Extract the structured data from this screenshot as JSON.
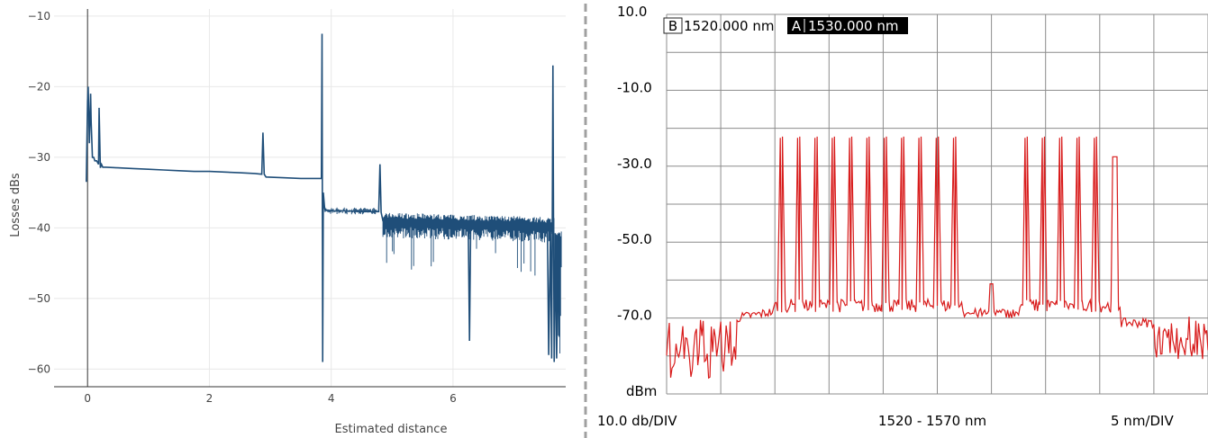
{
  "chart_data": [
    {
      "type": "line",
      "title": "",
      "xlabel": "Estimated distance",
      "ylabel": "Losses dBs",
      "xlim": [
        -0.55,
        7.85
      ],
      "ylim": [
        -62.5,
        -9
      ],
      "x_ticks": [
        0,
        2,
        4,
        6
      ],
      "x_tick_labels": [
        "0",
        "2",
        "4",
        "6"
      ],
      "y_ticks": [
        -10,
        -20,
        -30,
        -40,
        -50,
        -60
      ],
      "y_tick_labels": [
        "−10",
        "−20",
        "−30",
        "−40",
        "−50",
        "−60"
      ],
      "grid": true,
      "line_color": "#1f4e79",
      "series": [
        {
          "x": [
            -0.02,
            0.0,
            0.01,
            0.03,
            0.05,
            0.06,
            0.08,
            0.1,
            0.12,
            0.15,
            0.18,
            0.19,
            0.21,
            0.23,
            0.25,
            0.3,
            0.5,
            0.75,
            1.0,
            1.25,
            1.5,
            1.75,
            2.0,
            2.25,
            2.5,
            2.75,
            2.86,
            2.88,
            2.9,
            2.93,
            3.2,
            3.5,
            3.84,
            3.85,
            3.86,
            3.87,
            3.89,
            3.9,
            3.95,
            4.0,
            4.25,
            4.5,
            4.78,
            4.8,
            4.82,
            4.85,
            5.0,
            5.25,
            5.5,
            5.75,
            6.0,
            6.25,
            6.27,
            6.29,
            6.5,
            6.75,
            7.0,
            7.25,
            7.4,
            7.5,
            7.55,
            7.57,
            7.6,
            7.62,
            7.63,
            7.64,
            7.65,
            7.66,
            7.68,
            7.7,
            7.73,
            7.78
          ],
          "y": [
            -33.5,
            -22.0,
            -20.0,
            -28.0,
            -21.0,
            -25.0,
            -30.0,
            -30.0,
            -30.5,
            -30.5,
            -31.0,
            -23.0,
            -31.5,
            -31.0,
            -31.4,
            -31.4,
            -31.5,
            -31.6,
            -31.7,
            -31.8,
            -31.9,
            -32.0,
            -32.0,
            -32.1,
            -32.2,
            -32.3,
            -32.4,
            -26.5,
            -32.4,
            -32.8,
            -32.9,
            -33.0,
            -33.0,
            -12.5,
            -59.0,
            -35.0,
            -37.0,
            -37.5,
            -37.5,
            -37.6,
            -37.6,
            -37.7,
            -37.7,
            -31.0,
            -37.8,
            -39.0,
            -39.2,
            -39.3,
            -39.4,
            -39.5,
            -39.5,
            -39.6,
            -56.0,
            -39.6,
            -39.7,
            -39.8,
            -39.9,
            -40.0,
            -40.0,
            -40.0,
            -40.2,
            -58.0,
            -40.2,
            -58.5,
            -39.0,
            -17.0,
            -40.5,
            -59.0,
            -41.5,
            -58.5,
            -42.0,
            -42.0
          ]
        }
      ]
    },
    {
      "type": "line",
      "title": "",
      "xlabel": "1520 - 1570 nm",
      "ylabel": "dBm",
      "xlim": [
        1520,
        1570
      ],
      "ylim": [
        -90,
        10
      ],
      "y_tick_labels": [
        "10.0",
        "-10.0",
        "-30.0",
        "-50.0",
        "-70.0",
        "dBm"
      ],
      "grid": true,
      "line_color": "#d81b1b",
      "markers": [
        {
          "id": "B",
          "value": "1520.000 nm"
        },
        {
          "id": "A",
          "value": "1530.000 nm"
        }
      ],
      "footer": {
        "left": "10.0 db/DIV",
        "center": "1520 - 1570 nm",
        "right": "5 nm/DIV"
      },
      "noise_floor_dbm": -69,
      "base_dbm": -65.5,
      "channels_nm": [
        1530.6,
        1532.2,
        1533.8,
        1535.4,
        1537.0,
        1538.6,
        1540.2,
        1541.8,
        1543.4,
        1545.0,
        1546.6,
        1553.2,
        1554.8,
        1556.4,
        1558.0,
        1559.6
      ],
      "channel_peaks_dbm": [
        -22.5,
        -22.5,
        -22.5,
        -22.5,
        -22.5,
        -22.5,
        -22.5,
        -22.5,
        -22.5,
        -22.5,
        -22.5,
        -22.5,
        -22.5,
        -22.5,
        -22.5,
        -22.5
      ],
      "flat_top_channel": {
        "from_nm": 1561.2,
        "to_nm": 1561.6,
        "level_dbm": -27.5
      }
    }
  ]
}
